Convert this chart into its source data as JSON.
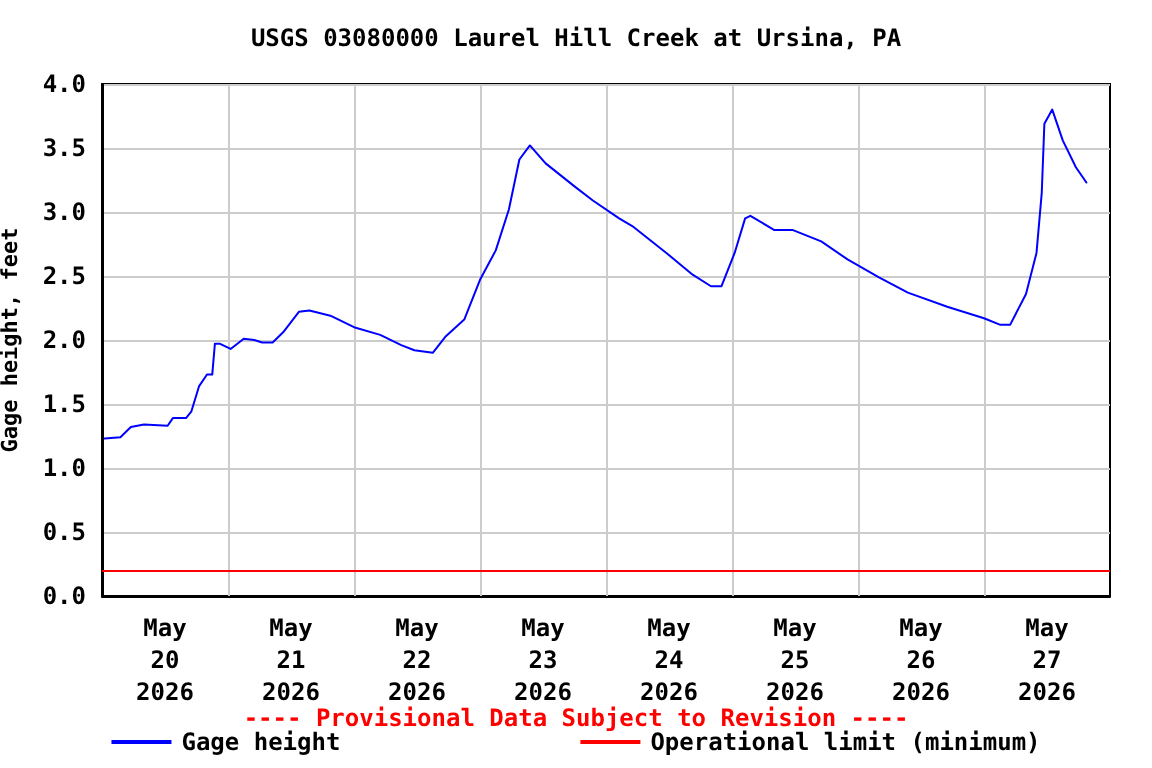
{
  "chart_data": {
    "type": "line",
    "title": "USGS 03080000 Laurel Hill Creek at Ursina, PA",
    "ylabel": "Gage height, feet",
    "annotations": [
      "---- Provisional Data Subject to Revision ----"
    ],
    "x": [
      "2026-05-20T00:30",
      "2026-05-20T03:30",
      "2026-05-20T05:30",
      "2026-05-20T08:00",
      "2026-05-20T12:30",
      "2026-05-20T13:30",
      "2026-05-20T16:00",
      "2026-05-20T17:00",
      "2026-05-20T18:30",
      "2026-05-20T20:00",
      "2026-05-20T21:00",
      "2026-05-20T21:30",
      "2026-05-20T22:30",
      "2026-05-21T00:30",
      "2026-05-21T03:00",
      "2026-05-21T05:00",
      "2026-05-21T06:30",
      "2026-05-21T08:30",
      "2026-05-21T10:30",
      "2026-05-21T13:30",
      "2026-05-21T15:30",
      "2026-05-21T19:30",
      "2026-05-22T00:00",
      "2026-05-22T05:00",
      "2026-05-22T09:00",
      "2026-05-22T11:30",
      "2026-05-22T15:00",
      "2026-05-22T17:30",
      "2026-05-22T21:00",
      "2026-05-23T00:00",
      "2026-05-23T03:00",
      "2026-05-23T05:30",
      "2026-05-23T07:30",
      "2026-05-23T09:30",
      "2026-05-23T12:30",
      "2026-05-23T18:00",
      "2026-05-23T21:30",
      "2026-05-24T02:30",
      "2026-05-24T05:00",
      "2026-05-24T11:30",
      "2026-05-24T16:30",
      "2026-05-24T20:00",
      "2026-05-24T22:00",
      "2026-05-25T00:30",
      "2026-05-25T02:30",
      "2026-05-25T03:30",
      "2026-05-25T08:00",
      "2026-05-25T11:30",
      "2026-05-25T17:00",
      "2026-05-25T22:00",
      "2026-05-26T04:00",
      "2026-05-26T09:30",
      "2026-05-26T17:00",
      "2026-05-27T00:00",
      "2026-05-27T03:00",
      "2026-05-27T05:00",
      "2026-05-27T08:00",
      "2026-05-27T10:00",
      "2026-05-27T11:00",
      "2026-05-27T11:30",
      "2026-05-27T13:00",
      "2026-05-27T15:00",
      "2026-05-27T17:30",
      "2026-05-27T19:30"
    ],
    "series": [
      {
        "name": "Gage height",
        "color": "#0000ff",
        "values": [
          1.23,
          1.24,
          1.32,
          1.34,
          1.33,
          1.39,
          1.39,
          1.44,
          1.64,
          1.73,
          1.73,
          1.97,
          1.97,
          1.93,
          2.01,
          2.0,
          1.98,
          1.98,
          2.06,
          2.22,
          2.23,
          2.19,
          2.1,
          2.04,
          1.96,
          1.92,
          1.9,
          2.03,
          2.16,
          2.47,
          2.7,
          3.02,
          3.41,
          3.52,
          3.38,
          3.2,
          3.09,
          2.95,
          2.89,
          2.68,
          2.51,
          2.42,
          2.42,
          2.68,
          2.95,
          2.97,
          2.86,
          2.86,
          2.77,
          2.63,
          2.49,
          2.37,
          2.26,
          2.17,
          2.12,
          2.12,
          2.36,
          2.68,
          3.15,
          3.69,
          3.8,
          3.56,
          3.35,
          3.23
        ]
      }
    ],
    "xlim": [
      "2026-05-20T00:00",
      "2026-05-28T00:00"
    ],
    "xticks": [
      {
        "value": "2026-05-20T12:00",
        "label": "May\n20\n2026"
      },
      {
        "value": "2026-05-21T00:00",
        "label": null
      },
      {
        "value": "2026-05-21T12:00",
        "label": "May\n21\n2026"
      },
      {
        "value": "2026-05-22T00:00",
        "label": null
      },
      {
        "value": "2026-05-22T12:00",
        "label": "May\n22\n2026"
      },
      {
        "value": "2026-05-23T00:00",
        "label": null
      },
      {
        "value": "2026-05-23T12:00",
        "label": "May\n23\n2026"
      },
      {
        "value": "2026-05-24T00:00",
        "label": null
      },
      {
        "value": "2026-05-24T12:00",
        "label": "May\n24\n2026"
      },
      {
        "value": "2026-05-25T00:00",
        "label": null
      },
      {
        "value": "2026-05-25T12:00",
        "label": "May\n25\n2026"
      },
      {
        "value": "2026-05-26T00:00",
        "label": null
      },
      {
        "value": "2026-05-26T12:00",
        "label": "May\n26\n2026"
      },
      {
        "value": "2026-05-27T00:00",
        "label": null
      },
      {
        "value": "2026-05-27T12:00",
        "label": "May\n27\n2026"
      }
    ],
    "ylim": [
      0,
      4
    ],
    "yticks": [
      {
        "value": 0,
        "label": "0.0"
      },
      {
        "value": 0.5,
        "label": "0.5"
      },
      {
        "value": 1,
        "label": "1.0"
      },
      {
        "value": 1.5,
        "label": "1.5"
      },
      {
        "value": 2,
        "label": "2.0"
      },
      {
        "value": 2.5,
        "label": "2.5"
      },
      {
        "value": 3,
        "label": "3.0"
      },
      {
        "value": 3.5,
        "label": "3.5"
      },
      {
        "value": 4,
        "label": "4.0"
      }
    ],
    "ref_lines": [
      {
        "axis": "y",
        "value": 0.2,
        "label": "Operational limit (minimum)",
        "color": "#ff0000"
      }
    ],
    "grid": true,
    "legend": "bottom",
    "marker": "none",
    "line_style": "solid"
  }
}
